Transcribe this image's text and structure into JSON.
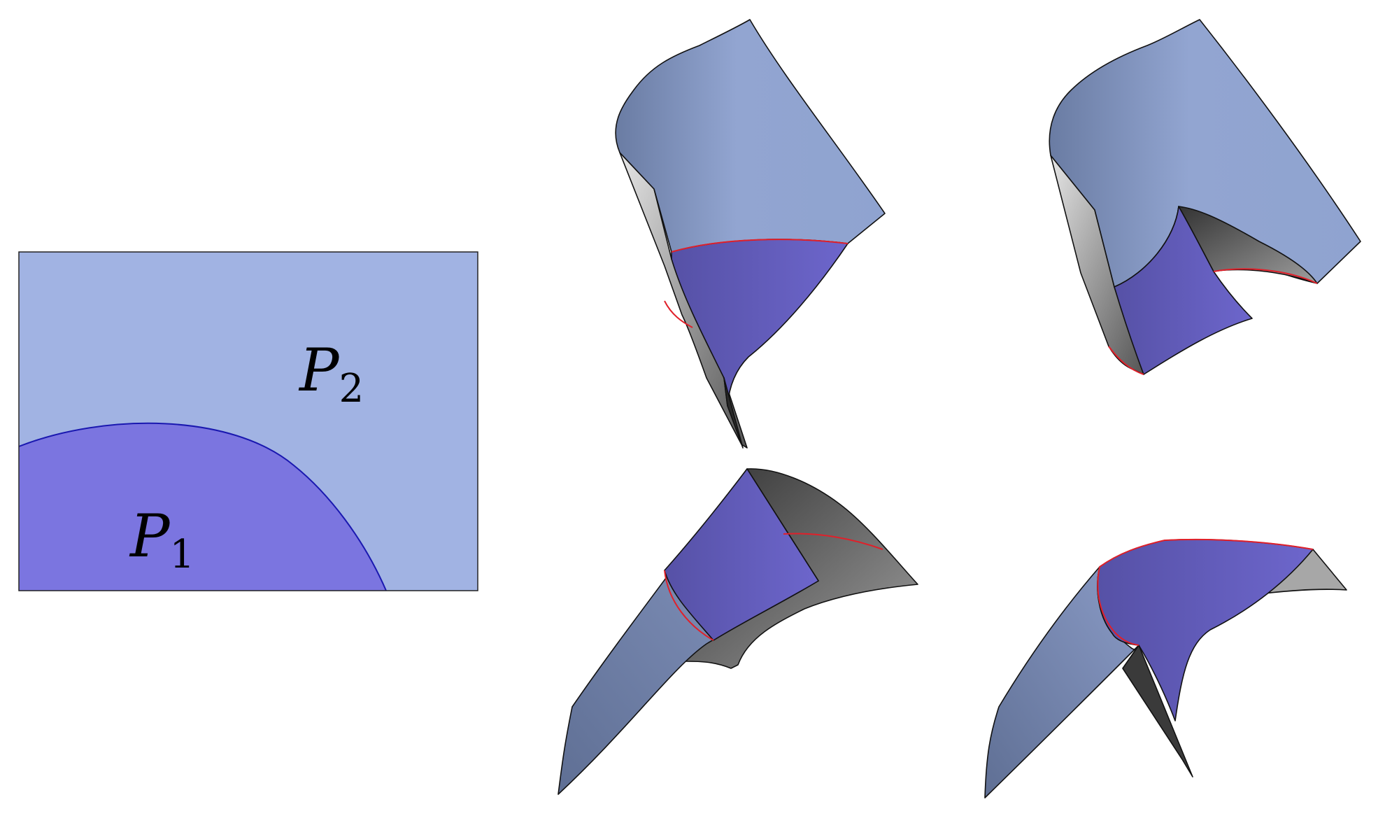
{
  "diagram": {
    "parameter_domain": {
      "regions": [
        {
          "id": "P1",
          "symbol": "P",
          "subscript": "1"
        },
        {
          "id": "P2",
          "symbol": "P",
          "subscript": "2"
        }
      ]
    },
    "colors": {
      "region_p1": "#7b75e0",
      "region_p2": "#a1b3e3",
      "boundary_curve": "#1a18b0",
      "frame_border": "#222222",
      "surface_light_blue": "#92a5d1",
      "surface_slate_blue": "#6a7ca3",
      "surface_violet": "#6a64c8",
      "surface_grey": "#9a9a9a",
      "surface_dark_grey": "#444444",
      "seam_curve": "#e0202a"
    },
    "surface_views": [
      {
        "name": "view-top-left"
      },
      {
        "name": "view-top-right"
      },
      {
        "name": "view-bottom-left"
      },
      {
        "name": "view-bottom-right"
      }
    ]
  }
}
